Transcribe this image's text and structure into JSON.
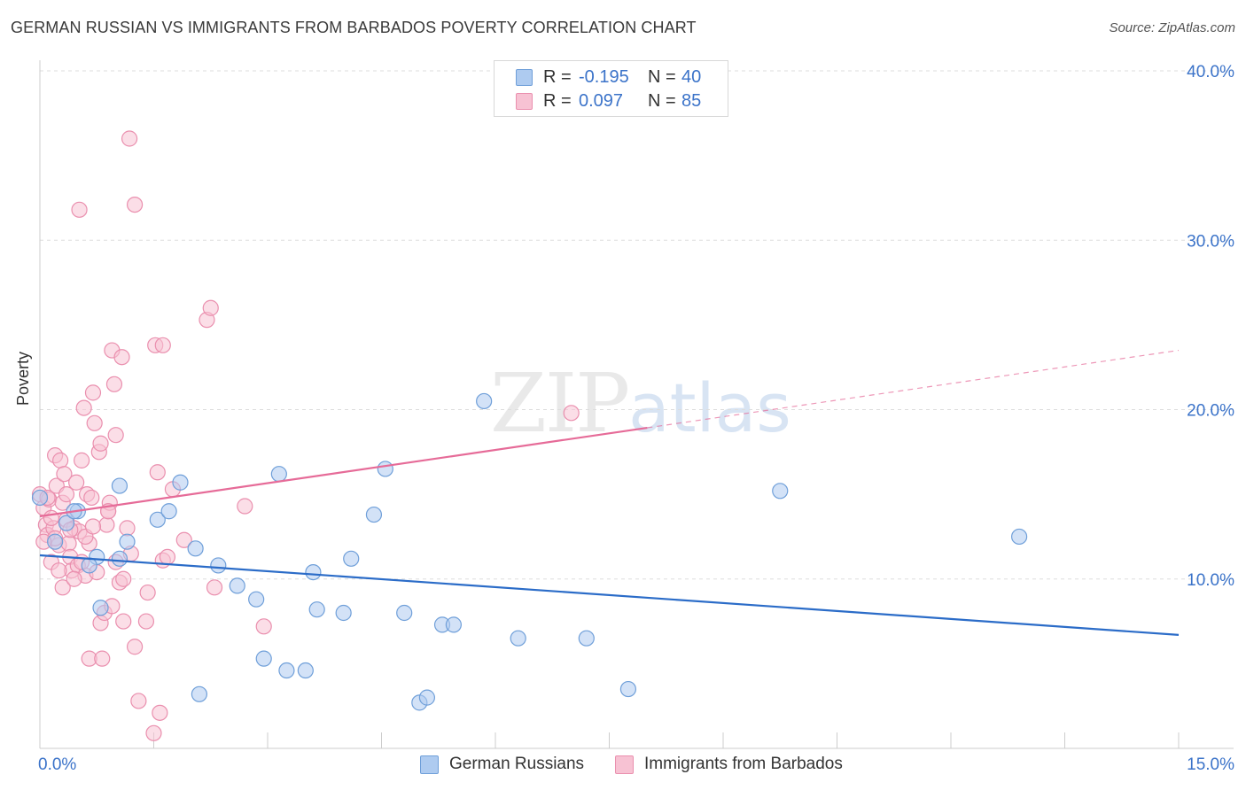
{
  "header": {
    "title": "GERMAN RUSSIAN VS IMMIGRANTS FROM BARBADOS POVERTY CORRELATION CHART",
    "source": "Source: ZipAtlas.com"
  },
  "legend": {
    "rows": [
      {
        "r_label": "R =",
        "r_value": "-0.195",
        "n_label": "N =",
        "n_value": "40"
      },
      {
        "r_label": "R =",
        "r_value": "0.097",
        "n_label": "N =",
        "n_value": "85"
      }
    ]
  },
  "bottom_legend": [
    "German Russians",
    "Immigrants from Barbados"
  ],
  "watermark": {
    "zip": "ZIP",
    "atlas": "atlas"
  },
  "colors": {
    "blue_fill": "#aecbf0",
    "blue_stroke": "#6f9fd9",
    "blue_line": "#2b6cc8",
    "pink_fill": "#f7c2d3",
    "pink_stroke": "#ea8fae",
    "pink_line": "#e66b98",
    "axis_text": "#3b73c9",
    "grid": "#dddddd"
  },
  "chart_data": {
    "type": "scatter",
    "title": "GERMAN RUSSIAN VS IMMIGRANTS FROM BARBADOS POVERTY CORRELATION CHART",
    "xlabel": "",
    "ylabel": "Poverty",
    "xlim": [
      0,
      15
    ],
    "ylim": [
      0,
      40
    ],
    "x_tick_labels": [
      "0.0%",
      "15.0%"
    ],
    "y_tick_labels": [
      "10.0%",
      "20.0%",
      "30.0%",
      "40.0%"
    ],
    "y_ticks": [
      10,
      20,
      30,
      40
    ],
    "x_ticks": [
      0,
      1.5,
      3,
      4.5,
      6,
      7.5,
      9,
      10.5,
      12,
      13.5,
      15
    ],
    "series": [
      {
        "name": "German Russians",
        "r": -0.195,
        "n": 40,
        "trend": {
          "x0": 0,
          "y0": 11.4,
          "x1": 15,
          "y1": 6.7,
          "solid_to": 15
        },
        "points": [
          [
            0.0,
            14.8
          ],
          [
            0.2,
            12.2
          ],
          [
            0.35,
            13.3
          ],
          [
            0.5,
            14.0
          ],
          [
            0.75,
            11.3
          ],
          [
            0.8,
            8.3
          ],
          [
            1.05,
            15.5
          ],
          [
            1.05,
            11.2
          ],
          [
            1.15,
            12.2
          ],
          [
            1.55,
            13.5
          ],
          [
            1.7,
            14.0
          ],
          [
            1.85,
            15.7
          ],
          [
            2.05,
            11.8
          ],
          [
            2.1,
            3.2
          ],
          [
            2.35,
            10.8
          ],
          [
            2.6,
            9.6
          ],
          [
            2.85,
            8.8
          ],
          [
            2.95,
            5.3
          ],
          [
            3.15,
            16.2
          ],
          [
            3.25,
            4.6
          ],
          [
            3.5,
            4.6
          ],
          [
            3.6,
            10.4
          ],
          [
            3.65,
            8.2
          ],
          [
            4.0,
            8.0
          ],
          [
            4.1,
            11.2
          ],
          [
            4.4,
            13.8
          ],
          [
            4.55,
            16.5
          ],
          [
            4.8,
            8.0
          ],
          [
            5.0,
            2.7
          ],
          [
            5.1,
            3.0
          ],
          [
            5.3,
            7.3
          ],
          [
            5.45,
            7.3
          ],
          [
            5.85,
            20.5
          ],
          [
            6.3,
            6.5
          ],
          [
            7.2,
            6.5
          ],
          [
            7.75,
            3.5
          ],
          [
            9.75,
            15.2
          ],
          [
            12.9,
            12.5
          ],
          [
            0.65,
            10.8
          ],
          [
            0.45,
            14.0
          ]
        ]
      },
      {
        "name": "Immigrants from Barbados",
        "r": 0.097,
        "n": 85,
        "trend": {
          "x0": 0,
          "y0": 13.7,
          "x1": 15,
          "y1": 23.5,
          "solid_to": 8.0
        },
        "points": [
          [
            0.0,
            15.0
          ],
          [
            0.05,
            14.2
          ],
          [
            0.08,
            13.2
          ],
          [
            0.1,
            12.6
          ],
          [
            0.12,
            14.7
          ],
          [
            0.15,
            11.0
          ],
          [
            0.18,
            13.0
          ],
          [
            0.2,
            17.3
          ],
          [
            0.22,
            15.5
          ],
          [
            0.25,
            12.0
          ],
          [
            0.27,
            17.0
          ],
          [
            0.3,
            14.5
          ],
          [
            0.3,
            9.5
          ],
          [
            0.32,
            16.2
          ],
          [
            0.35,
            13.5
          ],
          [
            0.38,
            12.1
          ],
          [
            0.4,
            11.3
          ],
          [
            0.42,
            10.5
          ],
          [
            0.45,
            13.0
          ],
          [
            0.48,
            15.7
          ],
          [
            0.5,
            10.8
          ],
          [
            0.52,
            12.8
          ],
          [
            0.55,
            17.0
          ],
          [
            0.58,
            20.1
          ],
          [
            0.6,
            10.2
          ],
          [
            0.62,
            15.0
          ],
          [
            0.65,
            5.3
          ],
          [
            0.65,
            12.1
          ],
          [
            0.68,
            14.8
          ],
          [
            0.7,
            21.0
          ],
          [
            0.72,
            19.2
          ],
          [
            0.75,
            10.4
          ],
          [
            0.78,
            17.5
          ],
          [
            0.8,
            18.0
          ],
          [
            0.8,
            7.4
          ],
          [
            0.82,
            5.3
          ],
          [
            0.85,
            8.0
          ],
          [
            0.88,
            13.2
          ],
          [
            0.9,
            14.0
          ],
          [
            0.92,
            14.5
          ],
          [
            0.95,
            23.5
          ],
          [
            0.95,
            8.4
          ],
          [
            0.98,
            21.5
          ],
          [
            1.0,
            18.5
          ],
          [
            1.0,
            11.0
          ],
          [
            1.05,
            9.8
          ],
          [
            1.08,
            23.1
          ],
          [
            1.1,
            10.0
          ],
          [
            1.1,
            7.5
          ],
          [
            1.15,
            13.0
          ],
          [
            1.18,
            36.0
          ],
          [
            1.2,
            11.5
          ],
          [
            1.25,
            32.1
          ],
          [
            1.25,
            6.0
          ],
          [
            1.3,
            2.8
          ],
          [
            1.4,
            7.5
          ],
          [
            1.42,
            9.2
          ],
          [
            1.5,
            0.9
          ],
          [
            1.52,
            23.8
          ],
          [
            1.55,
            16.3
          ],
          [
            1.58,
            2.1
          ],
          [
            1.62,
            23.8
          ],
          [
            1.62,
            11.1
          ],
          [
            1.68,
            11.3
          ],
          [
            1.75,
            15.3
          ],
          [
            1.9,
            12.3
          ],
          [
            2.2,
            25.3
          ],
          [
            2.25,
            26.0
          ],
          [
            2.3,
            9.5
          ],
          [
            2.7,
            14.3
          ],
          [
            2.95,
            7.2
          ],
          [
            7.0,
            19.8
          ],
          [
            0.52,
            31.8
          ],
          [
            0.1,
            14.8
          ],
          [
            0.2,
            12.4
          ],
          [
            0.4,
            12.9
          ],
          [
            0.55,
            11.0
          ],
          [
            0.9,
            14.0
          ],
          [
            0.25,
            10.5
          ],
          [
            0.35,
            15.0
          ],
          [
            0.6,
            12.5
          ],
          [
            0.7,
            13.1
          ],
          [
            0.15,
            13.6
          ],
          [
            0.45,
            10.0
          ],
          [
            0.05,
            12.2
          ]
        ]
      }
    ]
  }
}
